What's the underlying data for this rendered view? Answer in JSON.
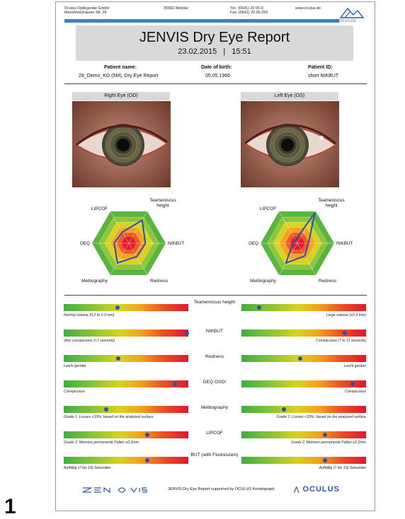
{
  "page_number": "1",
  "company": {
    "line1": "Oculus Optikgeräte GmbH",
    "line2": "Münchholzhäuser Str. 29",
    "city": "35582 Wetzlar",
    "tel": "Tel.: (0641) 20 05-0",
    "fax": "Fax: (0641) 20 05-255",
    "web": "www.oculus.de",
    "logo_text": "OCULUS"
  },
  "report": {
    "title": "JENVIS Dry Eye Report",
    "date": "23.02.2015",
    "time": "15:51"
  },
  "patient": {
    "name_label": "Patient name:",
    "name_value": "28_Demo_KG (5M), Dry Eye Report",
    "dob_label": "Date of birth:",
    "dob_value": "05.05.1966",
    "id_label": "Patient ID:",
    "id_value": "short NIKBUT"
  },
  "eyes": {
    "right_label": "Right Eye (OD)",
    "left_label": "Left Eye (OS)"
  },
  "radar": {
    "axes": [
      "Teameniscus height",
      "NIKBUT",
      "Redness",
      "Meibography",
      "DEQ",
      "LIPCOF"
    ],
    "right_values": [
      0.72,
      0.45,
      0.42,
      0.62,
      0.4,
      0.35
    ],
    "left_values": [
      0.95,
      0.3,
      0.4,
      0.62,
      0.12,
      0.1
    ]
  },
  "metrics": [
    {
      "label": "Teameniscus height",
      "right_value": 0.43,
      "left_value": 0.14,
      "right_caption": "Normal volume (0.2 to 0.3 mm)",
      "left_caption": "Large volume (≥0.3 mm)"
    },
    {
      "label": "NIKBUT",
      "right_value": 0.99,
      "left_value": 0.83,
      "right_caption": "Very conspicuous (<7 seconds)",
      "left_caption": "Conspicuous (7 to 11 seconds)"
    },
    {
      "label": "Redness",
      "right_value": 0.44,
      "left_value": 0.47,
      "right_caption": "Leicht gerötet",
      "left_caption": "Leicht gerötet"
    },
    {
      "label": "DEQ OSDI",
      "right_value": 0.89,
      "left_value": 0.89,
      "right_caption": "Conspicuous",
      "left_caption": "Conspicuous"
    },
    {
      "label": "Meibography",
      "right_value": 0.34,
      "left_value": 0.34,
      "right_caption": "Grade 1: Losses <33%, based on the analyzed surface",
      "left_caption": "Grade 1: Losses <33%, based on the analyzed surface"
    },
    {
      "label": "LIPCOF",
      "right_value": 0.67,
      "left_value": 0.67,
      "right_caption": "Grade 2: Mehrere permanente Falten ≤0.2mm",
      "left_caption": "Grade 2: Mehrere permanente Falten ≤0.2mm"
    },
    {
      "label": "BUT (with Fluoreszein)",
      "right_value": 0.67,
      "left_value": 0.67,
      "right_caption": "Auffällig (7 bis 10) Sekunden",
      "left_caption": "Auffällig (7 bis 10) Sekunden"
    }
  ],
  "footer": {
    "text": "JENVIS Dry Eye Report supported by OCULUS Keratograph",
    "logo_right": "OCULUS"
  },
  "colors": {
    "accent_blue": "#3e7fc4",
    "plot_line": "#2f4fa6"
  }
}
